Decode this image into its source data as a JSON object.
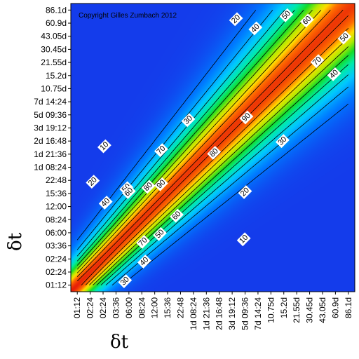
{
  "chart_data": {
    "type": "heatmap",
    "title": "",
    "xlabel": "δt",
    "ylabel": "δt",
    "copyright": "Copyright Gilles Zumbach 2012",
    "x_ticks": [
      "01:12",
      "02:24",
      "02:24",
      "03:36",
      "06:00",
      "08:24",
      "12:00",
      "15:36",
      "22:48",
      "1d 08:24",
      "1d 21:36",
      "2d 16:48",
      "3d 19:12",
      "5d 09:36",
      "7d 14:24",
      "10.75d",
      "15.2d",
      "21.55d",
      "30.45d",
      "43.05d",
      "60.9d",
      "86.1d"
    ],
    "y_ticks": [
      "86.1d",
      "60.9d",
      "43.05d",
      "30.45d",
      "21.55d",
      "15.2d",
      "10.75d",
      "7d 14:24",
      "5d 09:36",
      "3d 19:12",
      "2d 16:48",
      "1d 21:36",
      "1d 08:24",
      "22:48",
      "15:36",
      "12:00",
      "08:24",
      "06:00",
      "03:36",
      "02:24",
      "02:24",
      "01:12"
    ],
    "contour_levels": [
      10,
      20,
      30,
      40,
      50,
      60,
      70,
      80,
      90
    ],
    "contour_labels": [
      {
        "text": "20",
        "x": 12.3,
        "y": 20.3
      },
      {
        "text": "40",
        "x": 13.8,
        "y": 19.6
      },
      {
        "text": "50",
        "x": 16.2,
        "y": 20.6
      },
      {
        "text": "60",
        "x": 17.8,
        "y": 20.2
      },
      {
        "text": "50",
        "x": 20.7,
        "y": 18.9
      },
      {
        "text": "70",
        "x": 18.6,
        "y": 17.1
      },
      {
        "text": "40",
        "x": 19.9,
        "y": 16.1
      },
      {
        "text": "30",
        "x": 8.6,
        "y": 12.6
      },
      {
        "text": "90",
        "x": 13.1,
        "y": 12.8
      },
      {
        "text": "30",
        "x": 15.9,
        "y": 11.0
      },
      {
        "text": "70",
        "x": 6.5,
        "y": 10.3
      },
      {
        "text": "80",
        "x": 10.6,
        "y": 10.1
      },
      {
        "text": "10",
        "x": 2.1,
        "y": 10.6
      },
      {
        "text": "20",
        "x": 1.2,
        "y": 7.9
      },
      {
        "text": "50",
        "x": 3.8,
        "y": 7.4
      },
      {
        "text": "60",
        "x": 4.0,
        "y": 7.1
      },
      {
        "text": "80",
        "x": 5.5,
        "y": 7.5
      },
      {
        "text": "90",
        "x": 6.5,
        "y": 7.7
      },
      {
        "text": "20",
        "x": 13.0,
        "y": 7.1
      },
      {
        "text": "40",
        "x": 2.2,
        "y": 6.3
      },
      {
        "text": "60",
        "x": 7.7,
        "y": 5.3
      },
      {
        "text": "50",
        "x": 6.4,
        "y": 3.9
      },
      {
        "text": "70",
        "x": 5.1,
        "y": 3.3
      },
      {
        "text": "10",
        "x": 12.9,
        "y": 3.5
      },
      {
        "text": "40",
        "x": 5.2,
        "y": 1.8
      },
      {
        "text": "30",
        "x": 3.7,
        "y": 0.3
      }
    ]
  }
}
